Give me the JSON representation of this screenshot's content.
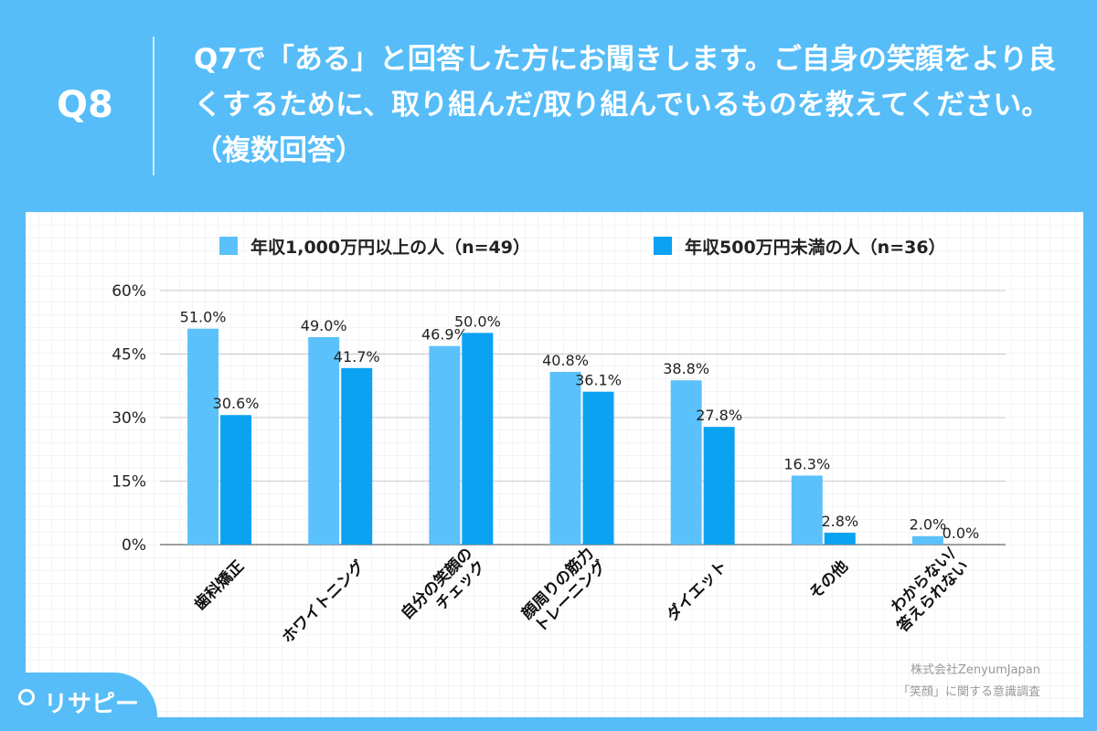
{
  "header": {
    "q": "Q8",
    "title": "Q7で「ある」と回答した方にお聞きします。ご自身の笑顔をより良くするために、取り組んだ/取り組んでいるものを教えてください。（複数回答）"
  },
  "credit": {
    "line1": "株式会社ZenyumJapan",
    "line2": "「笑顔」に関する意識調査"
  },
  "logo": {
    "text": "リサピー"
  },
  "chart_data": {
    "type": "bar",
    "categories": [
      "歯科矯正",
      "ホワイトニング",
      "自分の笑顔の\nチェック",
      "顔周りの筋力\nトレーニング",
      "ダイエット",
      "その他",
      "わからない/\n答えられない"
    ],
    "series": [
      {
        "name": "年収1,000万円以上の人（n=49）",
        "color": "#5bc1fb",
        "values": [
          51.0,
          49.0,
          46.9,
          40.8,
          38.8,
          16.3,
          2.0
        ]
      },
      {
        "name": "年収500万円未満の人（n=36）",
        "color": "#0ba2f2",
        "values": [
          30.6,
          41.7,
          50.0,
          36.1,
          27.8,
          2.8,
          0.0
        ]
      }
    ],
    "ylim": [
      0,
      60
    ],
    "yticks": [
      "0%",
      "15%",
      "30%",
      "45%",
      "60%"
    ],
    "grid": true,
    "legend": "top"
  }
}
